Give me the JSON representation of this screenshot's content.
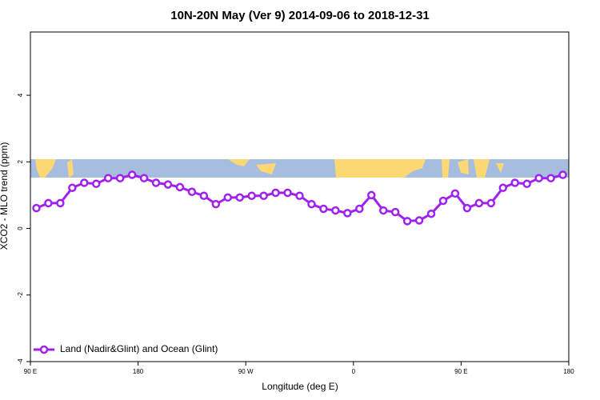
{
  "chart_data": {
    "type": "line",
    "title": "10N-20N May (Ver 9)   2014-09-06 to 2018-12-31",
    "x_label": "Longitude (deg E)",
    "y_label": "XCO2 - MLO trend (ppm)",
    "x": [
      95,
      105,
      115,
      125,
      135,
      145,
      155,
      165,
      175,
      185,
      195,
      205,
      215,
      225,
      235,
      245,
      255,
      265,
      275,
      285,
      295,
      305,
      315,
      325,
      335,
      345,
      355,
      365,
      375,
      385,
      395,
      405,
      415,
      425,
      435,
      445,
      455,
      465,
      475,
      485,
      495,
      505,
      515,
      525,
      535
    ],
    "series": [
      {
        "name": "Land (Nadir&Glint) and Ocean (Glint)",
        "color": "#a020f0",
        "values": [
          0.61,
          0.76,
          0.76,
          1.22,
          1.37,
          1.34,
          1.51,
          1.51,
          1.61,
          1.51,
          1.37,
          1.32,
          1.24,
          1.1,
          0.98,
          0.73,
          0.93,
          0.93,
          0.98,
          0.98,
          1.07,
          1.07,
          0.98,
          0.73,
          0.59,
          0.54,
          0.46,
          0.59,
          1.0,
          0.54,
          0.49,
          0.22,
          0.24,
          0.44,
          0.83,
          1.05,
          0.61,
          0.76,
          0.76,
          1.22,
          1.37,
          1.34,
          1.51,
          1.51,
          1.61
        ]
      }
    ],
    "xlim": [
      90,
      540
    ],
    "xticks": [
      {
        "value": 90,
        "label": "90 E"
      },
      180,
      {
        "value": 270,
        "label": "90 W"
      },
      {
        "value": 360,
        "label": "0"
      },
      {
        "value": 450,
        "label": "90 E"
      },
      {
        "value": 540,
        "label": "180"
      }
    ],
    "ylim": [
      -4,
      5.9
    ],
    "yticks": [
      -4,
      -2,
      0,
      2,
      4
    ],
    "legend": "bottom-left"
  }
}
